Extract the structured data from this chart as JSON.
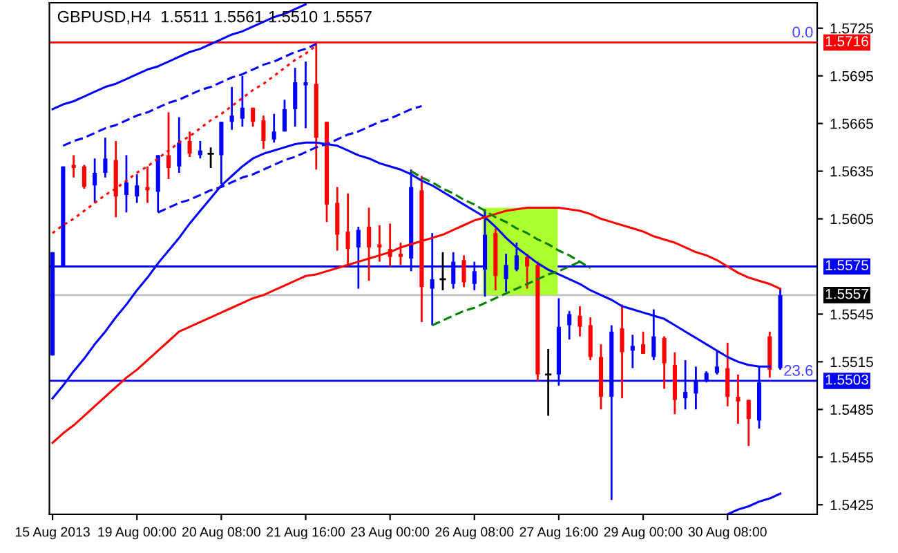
{
  "chart_data": {
    "type": "candlestick",
    "title": "GBPUSD,H4  1.5511 1.5561 1.5510 1.5557",
    "categories": [
      "15 Aug 2013",
      null,
      null,
      null,
      null,
      null,
      null,
      null,
      "19 Aug 00:00",
      null,
      null,
      null,
      null,
      null,
      null,
      null,
      "20 Aug 08:00",
      null,
      null,
      null,
      null,
      null,
      null,
      null,
      "21 Aug 16:00",
      null,
      null,
      null,
      null,
      null,
      null,
      null,
      "23 Aug 00:00",
      null,
      null,
      null,
      null,
      null,
      null,
      null,
      "26 Aug 08:00",
      null,
      null,
      null,
      null,
      null,
      null,
      null,
      "27 Aug 16:00",
      null,
      null,
      null,
      null,
      null,
      null,
      null,
      "29 Aug 00:00",
      null,
      null,
      null,
      null,
      null,
      null,
      null,
      "30 Aug 08:00",
      null,
      null,
      null,
      null,
      null
    ],
    "ohlc": [
      [
        1.5519,
        1.5584,
        1.5519,
        1.5584
      ],
      [
        1.5575,
        1.5638,
        1.5575,
        1.5638
      ],
      [
        1.5639,
        1.5645,
        1.5631,
        1.5637
      ],
      [
        1.5638,
        1.5639,
        1.5624,
        1.5625
      ],
      [
        1.5626,
        1.5643,
        1.5615,
        1.5634
      ],
      [
        1.5634,
        1.5656,
        1.5631,
        1.5643
      ],
      [
        1.5642,
        1.5654,
        1.5606,
        1.5619
      ],
      [
        1.562,
        1.5645,
        1.5609,
        1.5628
      ],
      [
        1.5619,
        1.5633,
        1.5615,
        1.5626
      ],
      [
        1.5625,
        1.5638,
        1.5615,
        1.5623
      ],
      [
        1.5622,
        1.5645,
        1.5609,
        1.5645
      ],
      [
        1.5645,
        1.5672,
        1.563,
        1.5637
      ],
      [
        1.5638,
        1.5669,
        1.5634,
        1.5653
      ],
      [
        1.5654,
        1.566,
        1.5644,
        1.5646
      ],
      [
        1.5645,
        1.5654,
        1.5643,
        1.5648
      ],
      [
        1.5646,
        1.565,
        1.5637,
        1.5646
      ],
      [
        1.5645,
        1.5666,
        1.5627,
        1.5666
      ],
      [
        1.5666,
        1.5688,
        1.5661,
        1.567
      ],
      [
        1.5668,
        1.5695,
        1.5663,
        1.5675
      ],
      [
        1.5675,
        1.5675,
        1.5663,
        1.5666
      ],
      [
        1.5667,
        1.567,
        1.5649,
        1.5654
      ],
      [
        1.5655,
        1.5671,
        1.5653,
        1.566
      ],
      [
        1.566,
        1.568,
        1.566,
        1.5674
      ],
      [
        1.5674,
        1.57,
        1.5663,
        1.5691
      ],
      [
        1.5689,
        1.5704,
        1.5662,
        1.5691
      ],
      [
        1.569,
        1.5716,
        1.5636,
        1.5656
      ],
      [
        1.5666,
        1.5666,
        1.5603,
        1.5614
      ],
      [
        1.5615,
        1.5625,
        1.5585,
        1.5595
      ],
      [
        1.5597,
        1.5621,
        1.5575,
        1.5586
      ],
      [
        1.5587,
        1.56,
        1.5561,
        1.5598
      ],
      [
        1.56,
        1.5612,
        1.5566,
        1.5587
      ],
      [
        1.5589,
        1.5601,
        1.5578,
        1.5587
      ],
      [
        1.5586,
        1.5602,
        1.5575,
        1.5581
      ],
      [
        1.5583,
        1.559,
        1.5576,
        1.5581
      ],
      [
        1.558,
        1.5636,
        1.5572,
        1.5625
      ],
      [
        1.5623,
        1.5632,
        1.554,
        1.5562
      ],
      [
        1.5561,
        1.5596,
        1.5538,
        1.5567
      ],
      [
        1.5567,
        1.5584,
        1.556,
        1.5567
      ],
      [
        1.5564,
        1.5584,
        1.5561,
        1.5578
      ],
      [
        1.5579,
        1.5582,
        1.5562,
        1.5565
      ],
      [
        1.5564,
        1.5578,
        1.556,
        1.5572
      ],
      [
        1.5573,
        1.5611,
        1.5556,
        1.5595
      ],
      [
        1.5596,
        1.5599,
        1.556,
        1.5569
      ],
      [
        1.5567,
        1.5583,
        1.5559,
        1.5576
      ],
      [
        1.5573,
        1.559,
        1.5572,
        1.5582
      ],
      [
        1.5581,
        1.5583,
        1.5561,
        1.5575
      ],
      [
        1.5576,
        1.5578,
        1.5503,
        1.5507
      ],
      [
        1.5507,
        1.5523,
        1.5481,
        1.5507
      ],
      [
        1.5507,
        1.5555,
        1.55,
        1.5537
      ],
      [
        1.5538,
        1.5547,
        1.5529,
        1.5545
      ],
      [
        1.5544,
        1.555,
        1.5531,
        1.5537
      ],
      [
        1.5538,
        1.5543,
        1.5516,
        1.5518
      ],
      [
        1.5518,
        1.5526,
        1.5485,
        1.5493
      ],
      [
        1.5493,
        1.5538,
        1.5428,
        1.5534
      ],
      [
        1.5536,
        1.5551,
        1.5492,
        1.5521
      ],
      [
        1.5522,
        1.5532,
        1.5511,
        1.5525
      ],
      [
        1.5526,
        1.5534,
        1.552,
        1.552
      ],
      [
        1.5518,
        1.5548,
        1.5516,
        1.5531
      ],
      [
        1.553,
        1.5531,
        1.5498,
        1.5514
      ],
      [
        1.5513,
        1.5521,
        1.5482,
        1.5491
      ],
      [
        1.5492,
        1.5516,
        1.5485,
        1.5496
      ],
      [
        1.5495,
        1.5512,
        1.5485,
        1.5503
      ],
      [
        1.5503,
        1.5509,
        1.5502,
        1.5508
      ],
      [
        1.5508,
        1.5522,
        1.5507,
        1.5512
      ],
      [
        1.5511,
        1.5527,
        1.5487,
        1.5493
      ],
      [
        1.5493,
        1.5507,
        1.5476,
        1.549
      ],
      [
        1.5491,
        1.5491,
        1.5462,
        1.5479
      ],
      [
        1.5478,
        1.5512,
        1.5473,
        1.5502
      ],
      [
        1.5531,
        1.5534,
        1.5505,
        1.551
      ],
      [
        1.5511,
        1.5561,
        1.551,
        1.5557
      ]
    ],
    "colors": [
      "#0000ff",
      "#0000ff",
      "#ff0000",
      "#ff0000",
      "#0000ff",
      "#0000ff",
      "#ff0000",
      "#0000ff",
      "#0000ff",
      "#ff0000",
      "#0000ff",
      "#ff0000",
      "#0000ff",
      "#ff0000",
      "#0000ff",
      "#000000",
      "#0000ff",
      "#0000ff",
      "#0000ff",
      "#ff0000",
      "#ff0000",
      "#0000ff",
      "#0000ff",
      "#0000ff",
      "#0000ff",
      "#ff0000",
      "#ff0000",
      "#ff0000",
      "#ff0000",
      "#0000ff",
      "#ff0000",
      "#ff0000",
      "#ff0000",
      "#ff0000",
      "#0000ff",
      "#ff0000",
      "#0000ff",
      "#000000",
      "#0000ff",
      "#ff0000",
      "#0000ff",
      "#0000ff",
      "#ff0000",
      "#0000ff",
      "#0000ff",
      "#ff0000",
      "#ff0000",
      "#000000",
      "#0000ff",
      "#0000ff",
      "#ff0000",
      "#ff0000",
      "#ff0000",
      "#0000ff",
      "#ff0000",
      "#0000ff",
      "#ff0000",
      "#0000ff",
      "#ff0000",
      "#ff0000",
      "#0000ff",
      "#0000ff",
      "#0000ff",
      "#0000ff",
      "#ff0000",
      "#ff0000",
      "#ff0000",
      "#0000ff",
      "#ff0000",
      "#0000ff"
    ],
    "series": [
      {
        "type": "line",
        "color": "#0000ff",
        "values": [
          1.5492,
          1.55,
          1.5509,
          1.5517,
          1.5526,
          1.5534,
          1.5543,
          1.5551,
          1.556,
          1.5568,
          1.5577,
          1.5585,
          1.5593,
          1.5602,
          1.561,
          1.5618,
          1.5626,
          1.5632,
          1.5638,
          1.5643,
          1.5646,
          1.5648,
          1.565,
          1.5652,
          1.5653,
          1.5653,
          1.5652,
          1.5651,
          1.5648,
          1.5645,
          1.5643,
          1.564,
          1.5638,
          1.5636,
          1.5633,
          1.5629,
          1.5626,
          1.5622,
          1.5618,
          1.5614,
          1.561,
          1.5606,
          1.56,
          1.5593,
          1.5587,
          1.5582,
          1.5577,
          1.5573,
          1.557,
          1.5567,
          1.5564,
          1.556,
          1.5557,
          1.5554,
          1.555,
          1.5548,
          1.5546,
          1.5544,
          1.5542,
          1.5538,
          1.5534,
          1.553,
          1.5526,
          1.5522,
          1.5518,
          1.5515,
          1.5513,
          1.5512,
          1.5512,
          null
        ]
      },
      {
        "type": "line",
        "color": "#ff0000",
        "values": [
          1.5464,
          1.547,
          1.5475,
          1.5481,
          1.5487,
          1.5493,
          1.5499,
          1.5505,
          1.551,
          1.5516,
          1.5522,
          1.5528,
          1.5534,
          1.5537,
          1.554,
          1.5543,
          1.5546,
          1.5549,
          1.5552,
          1.5555,
          1.5557,
          1.556,
          1.5563,
          1.5566,
          1.5569,
          1.557,
          1.5572,
          1.5574,
          1.5576,
          1.5578,
          1.558,
          1.5582,
          1.5584,
          1.5587,
          1.5589,
          1.5591,
          1.5593,
          1.5595,
          1.5598,
          1.5601,
          1.5604,
          1.5606,
          1.5608,
          1.561,
          1.5611,
          1.5612,
          1.5612,
          1.5612,
          1.5612,
          1.5611,
          1.561,
          1.5608,
          1.5605,
          1.5603,
          1.5601,
          1.5599,
          1.5597,
          1.5594,
          1.5592,
          1.559,
          1.5587,
          1.5584,
          1.5582,
          1.5579,
          1.5575,
          1.5571,
          1.5568,
          1.5566,
          1.5564,
          1.5561
        ]
      },
      {
        "type": "line",
        "color": "#0000ff",
        "values": [
          1.5674,
          1.5677,
          1.5679,
          1.5682,
          1.5685,
          1.5688,
          1.569,
          1.5693,
          1.5696,
          1.5699,
          1.5701,
          1.5704,
          1.5707,
          1.571,
          1.5712,
          1.5715,
          1.5718,
          1.5721,
          1.5723,
          1.5726,
          1.5729,
          1.5732,
          1.5734,
          1.5737,
          1.574,
          null,
          null,
          null,
          null,
          null,
          null,
          null,
          null,
          null,
          null,
          null,
          null,
          null,
          null,
          null,
          null,
          null,
          null,
          null,
          null,
          null,
          null,
          null,
          null,
          null,
          null,
          null,
          null,
          null,
          null,
          null,
          null,
          null,
          null,
          null,
          null,
          null,
          null,
          null,
          null,
          null,
          null,
          null,
          null,
          null
        ]
      },
      {
        "type": "line",
        "color": "#0000ff",
        "values": [
          null,
          null,
          null,
          null,
          null,
          null,
          null,
          null,
          null,
          null,
          null,
          null,
          null,
          null,
          null,
          null,
          null,
          null,
          null,
          null,
          null,
          null,
          null,
          null,
          null,
          null,
          null,
          null,
          null,
          null,
          null,
          null,
          null,
          null,
          null,
          null,
          null,
          null,
          null,
          null,
          null,
          null,
          null,
          null,
          null,
          null,
          null,
          null,
          null,
          null,
          null,
          null,
          null,
          null,
          null,
          null,
          null,
          null,
          null,
          null,
          null,
          null,
          null,
          null,
          1.5419,
          1.5422,
          1.5424,
          1.5427,
          1.5429,
          1.5432
        ]
      },
      {
        "type": "line",
        "color": "#0000ff",
        "line_style": "dashed",
        "values": [
          null,
          1.5651,
          1.5654,
          1.5656,
          1.5659,
          1.5662,
          1.5664,
          1.5667,
          1.567,
          1.5672,
          1.5675,
          1.5678,
          1.568,
          1.5683,
          1.5686,
          1.5688,
          1.5691,
          1.5694,
          1.5696,
          1.5699,
          1.5702,
          1.5704,
          1.5707,
          1.571,
          1.5712,
          1.5715,
          null,
          null,
          null,
          null,
          null,
          null,
          null,
          null,
          null,
          null,
          null,
          null,
          null,
          null,
          null,
          null,
          null,
          null,
          null,
          null,
          null,
          null,
          null,
          null,
          null,
          null,
          null,
          null,
          null,
          null,
          null,
          null,
          null,
          null,
          null,
          null,
          null,
          null,
          null,
          null,
          null,
          null,
          null,
          null
        ]
      },
      {
        "type": "line",
        "color": "#0000ff",
        "line_style": "dashed",
        "values": [
          null,
          null,
          null,
          null,
          null,
          null,
          null,
          null,
          null,
          null,
          1.5609,
          1.5612,
          1.5615,
          1.5617,
          1.562,
          1.5623,
          1.5625,
          1.5628,
          1.5631,
          1.5633,
          1.5636,
          1.5639,
          1.5642,
          1.5644,
          1.5647,
          1.565,
          1.5652,
          1.5655,
          1.5658,
          1.566,
          1.5663,
          1.5666,
          1.5668,
          1.5671,
          1.5674,
          1.5676,
          null,
          null,
          null,
          null,
          null,
          null,
          null,
          null,
          null,
          null,
          null,
          null,
          null,
          null,
          null,
          null,
          null,
          null,
          null,
          null,
          null,
          null,
          null,
          null,
          null,
          null,
          null,
          null,
          null,
          null,
          null,
          null,
          null,
          null
        ]
      },
      {
        "type": "line",
        "color": "#ff0000",
        "line_style": "dotted",
        "values": [
          1.5596,
          1.5601,
          1.5605,
          1.561,
          1.5615,
          1.562,
          1.5624,
          1.5629,
          1.5634,
          1.5638,
          1.5643,
          1.5648,
          1.5653,
          1.5657,
          1.5662,
          1.5667,
          1.5671,
          1.5676,
          1.5681,
          1.5686,
          1.569,
          1.5695,
          1.57,
          1.5705,
          1.5709,
          1.5714,
          null,
          null,
          null,
          null,
          null,
          null,
          null,
          null,
          null,
          null,
          null,
          null,
          null,
          null,
          null,
          null,
          null,
          null,
          null,
          null,
          null,
          null,
          null,
          null,
          null,
          null,
          null,
          null,
          null,
          null,
          null,
          null,
          null,
          null,
          null,
          null,
          null,
          null,
          null,
          null,
          null,
          null,
          null,
          null
        ]
      },
      {
        "type": "line",
        "color": "#008000",
        "line_style": "dashed",
        "values": [
          null,
          null,
          null,
          null,
          null,
          null,
          null,
          null,
          null,
          null,
          null,
          null,
          null,
          null,
          null,
          null,
          null,
          null,
          null,
          null,
          null,
          null,
          null,
          null,
          null,
          null,
          null,
          null,
          null,
          null,
          null,
          null,
          null,
          null,
          1.5635,
          1.5631,
          1.5628,
          1.5624,
          1.5621,
          1.5617,
          1.5614,
          1.561,
          1.5606,
          1.5603,
          1.5599,
          1.5596,
          1.5592,
          1.5589,
          1.5585,
          1.5582,
          1.5578,
          1.5574,
          null,
          null,
          null,
          null,
          null,
          null,
          null,
          null,
          null,
          null,
          null,
          null,
          null,
          null,
          null,
          null,
          null,
          null
        ]
      },
      {
        "type": "line",
        "color": "#008000",
        "line_style": "dashed",
        "values": [
          null,
          null,
          null,
          null,
          null,
          null,
          null,
          null,
          null,
          null,
          null,
          null,
          null,
          null,
          null,
          null,
          null,
          null,
          null,
          null,
          null,
          null,
          null,
          null,
          null,
          null,
          null,
          null,
          null,
          null,
          null,
          null,
          null,
          null,
          null,
          null,
          1.5538,
          1.5541,
          1.5544,
          1.5547,
          1.5549,
          1.5552,
          1.5555,
          1.5558,
          1.5561,
          1.5564,
          1.5567,
          1.557,
          1.5572,
          1.5575,
          1.5578,
          null,
          null,
          null,
          null,
          null,
          null,
          null,
          null,
          null,
          null,
          null,
          null,
          null,
          null,
          null,
          null,
          null,
          null,
          null
        ]
      }
    ],
    "ylim": [
      1.5419,
      1.5741
    ],
    "yticks": [
      1.5725,
      1.5695,
      1.5665,
      1.5635,
      1.5605,
      1.5545,
      1.5515,
      1.5485,
      1.5455,
      1.5425
    ],
    "ref_lines": [
      {
        "axis": "y",
        "value": 1.5716,
        "label": "1.5716",
        "color": "#ff0000"
      },
      {
        "axis": "y",
        "value": 1.5575,
        "label": "1.5575",
        "color": "#0000ff"
      },
      {
        "axis": "y",
        "value": 1.5557,
        "label": "1.5557",
        "color": "#c0c0c0"
      },
      {
        "axis": "y",
        "value": 1.5503,
        "label": "1.5503",
        "color": "#0000ff"
      }
    ],
    "annotations": [
      {
        "text": "0.0",
        "y": 1.5716
      },
      {
        "text": "23.6",
        "y": 1.5503
      }
    ],
    "grid": false,
    "legend": false
  }
}
